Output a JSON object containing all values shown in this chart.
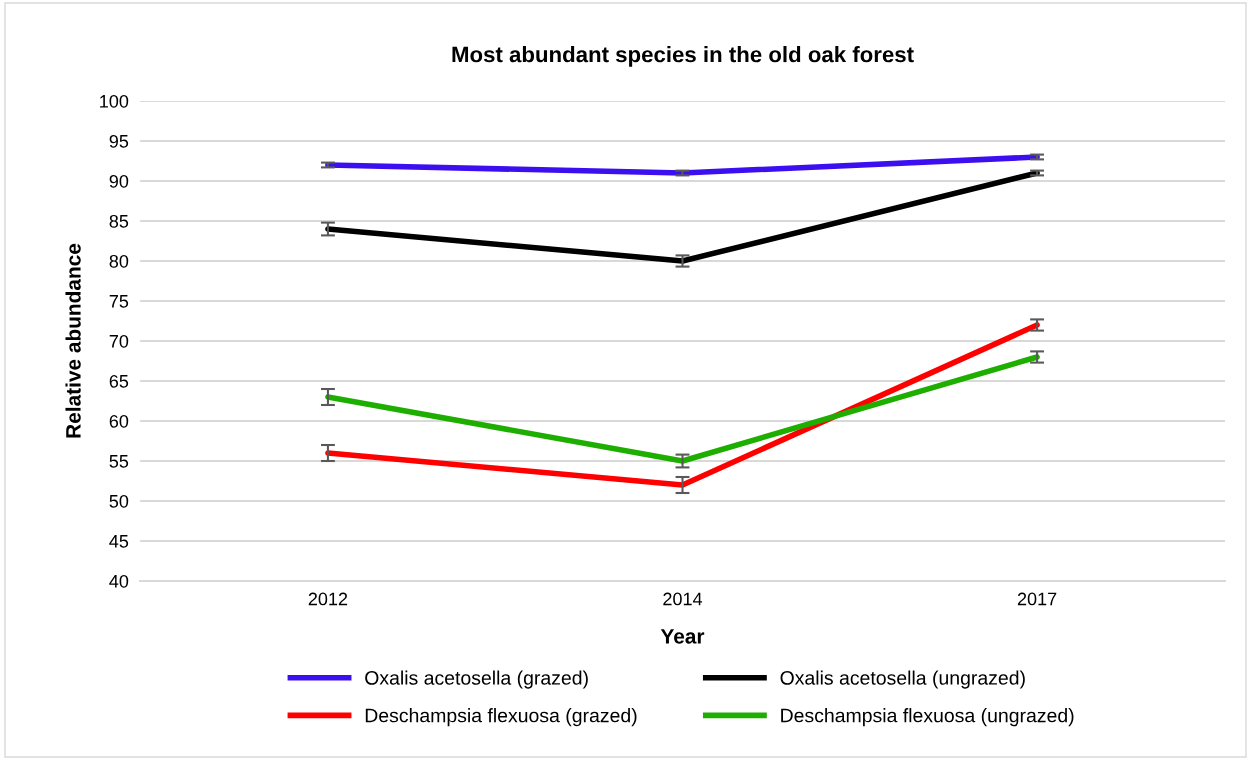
{
  "chart_data": {
    "type": "line",
    "title": "Most abundant species in the old oak forest",
    "xlabel": "Year",
    "ylabel": "Relative abundance",
    "categories": [
      "2012",
      "2014",
      "2017"
    ],
    "series": [
      {
        "name": "Oxalis acetosella (grazed)",
        "color": "#3b0ff0",
        "values": [
          92,
          91,
          93
        ],
        "errors": [
          0.3,
          0.3,
          0.3
        ]
      },
      {
        "name": "Deschampsia flexuosa (grazed)",
        "color": "#ff0000",
        "values": [
          56,
          52,
          72
        ],
        "errors": [
          1.0,
          1.0,
          0.7
        ]
      },
      {
        "name": "Oxalis acetosella (ungrazed)",
        "color": "#000000",
        "values": [
          84,
          80,
          91
        ],
        "errors": [
          0.8,
          0.7,
          0.3
        ]
      },
      {
        "name": "Deschampsia flexuosa (ungrazed)",
        "color": "#1eae00",
        "values": [
          63,
          55,
          68
        ],
        "errors": [
          1.0,
          0.8,
          0.7
        ]
      }
    ],
    "ylim": [
      40,
      100
    ],
    "yticks": [
      40,
      45,
      50,
      55,
      60,
      65,
      70,
      75,
      80,
      85,
      90,
      95,
      100
    ],
    "grid": "y",
    "legend": "bottom",
    "marker": "none",
    "line_style": "solid"
  }
}
